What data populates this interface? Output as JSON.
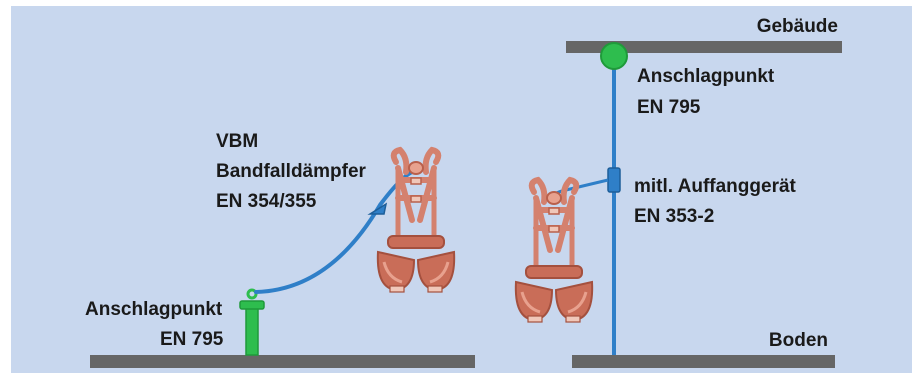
{
  "colors": {
    "background": "#c8d7ee",
    "border": "#ffffff",
    "beam": "#666666",
    "lifeline": "#2f7fc8",
    "anchor": "#2ebd4e",
    "harness": "#d4816e",
    "harness_dark": "#b9604c",
    "text": "#1a1a1a"
  },
  "labels": {
    "building": "Gebäude",
    "ground": "Boden",
    "left_anchor": [
      "Anschlagpunkt",
      "EN 795"
    ],
    "absorber": [
      "VBM",
      "Bandfalldämpfer",
      "EN 354/355"
    ],
    "right_anchor": [
      "Anschlagpunkt",
      "EN 795"
    ],
    "guided_arrester": [
      "mitl. Auffanggerät",
      "EN 353-2"
    ]
  },
  "icons": {
    "left_harness": "safety-harness-icon",
    "right_harness": "safety-harness-icon",
    "left_anchor": "anchor-post-icon",
    "right_anchor": "anchor-point-icon",
    "absorber": "energy-absorber-icon",
    "arrester": "fall-arrester-icon"
  }
}
